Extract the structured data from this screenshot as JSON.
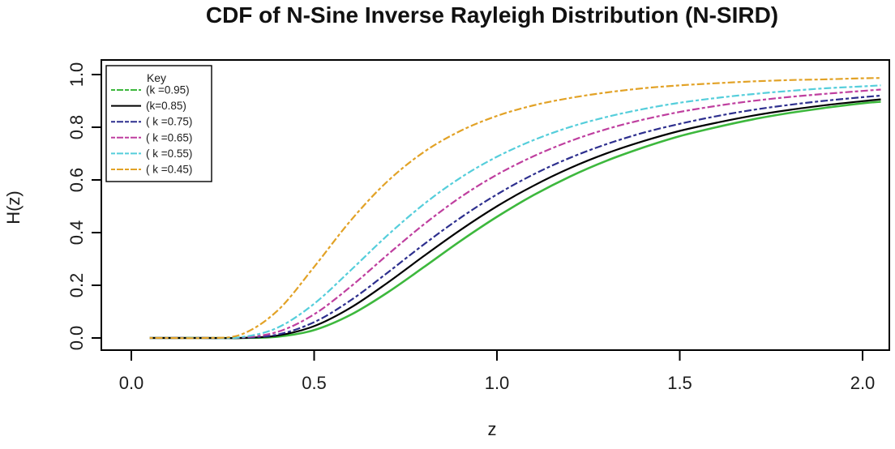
{
  "chart_data": {
    "type": "line",
    "title": "CDF of N-Sine Inverse Rayleigh Distribution (N-SIRD)",
    "xlabel": "z",
    "ylabel": "H(z)",
    "xlim": [
      0,
      2
    ],
    "ylim": [
      0,
      1
    ],
    "grid": false,
    "x_ticks": [
      0.0,
      0.5,
      1.0,
      1.5,
      2.0
    ],
    "x_tick_labels": [
      "0.0",
      "0.5",
      "1.0",
      "1.5",
      "2.0"
    ],
    "y_ticks": [
      0.0,
      0.2,
      0.4,
      0.6,
      0.8,
      1.0
    ],
    "y_tick_labels": [
      "0.0",
      "0.2",
      "0.4",
      "0.6",
      "0.8",
      "1.0"
    ],
    "legend": {
      "title": "Key",
      "position": "top-left"
    },
    "x": [
      0.05,
      0.1,
      0.2,
      0.3,
      0.4,
      0.5,
      0.6,
      0.7,
      0.8,
      0.9,
      1.0,
      1.1,
      1.2,
      1.3,
      1.4,
      1.5,
      1.6,
      1.7,
      1.8,
      1.9,
      2.0,
      2.05
    ],
    "series": [
      {
        "name": "k-0.95",
        "label": "(k =0.95)",
        "color": "#3db83d",
        "line_style": "solid",
        "legend_style": "twodash",
        "width": 2.6,
        "values": [
          0,
          0,
          0,
          0,
          0.005,
          0.03,
          0.088,
          0.172,
          0.269,
          0.368,
          0.46,
          0.542,
          0.613,
          0.673,
          0.723,
          0.766,
          0.8,
          0.83,
          0.854,
          0.874,
          0.891,
          0.897
        ]
      },
      {
        "name": "k-0.85",
        "label": "(k=0.85)",
        "color": "#000000",
        "line_style": "solid",
        "legend_style": "solid",
        "width": 2.2,
        "values": [
          0,
          0,
          0,
          0,
          0.009,
          0.045,
          0.115,
          0.209,
          0.311,
          0.41,
          0.5,
          0.578,
          0.645,
          0.701,
          0.747,
          0.786,
          0.817,
          0.844,
          0.866,
          0.884,
          0.899,
          0.906
        ]
      },
      {
        "name": "k-0.75",
        "label": "( k =0.75)",
        "color": "#2d2f8e",
        "line_style": "twodash",
        "legend_style": "twodash",
        "width": 2.2,
        "values": [
          0,
          0,
          0,
          0.001,
          0.013,
          0.06,
          0.143,
          0.247,
          0.355,
          0.456,
          0.545,
          0.621,
          0.684,
          0.736,
          0.779,
          0.813,
          0.842,
          0.866,
          0.885,
          0.901,
          0.914,
          0.92
        ]
      },
      {
        "name": "k-0.65",
        "label": "( k =0.65)",
        "color": "#bf3f9f",
        "line_style": "twodash",
        "legend_style": "twodash",
        "width": 2.2,
        "values": [
          0,
          0,
          0,
          0.002,
          0.023,
          0.09,
          0.195,
          0.315,
          0.431,
          0.534,
          0.62,
          0.69,
          0.747,
          0.793,
          0.829,
          0.858,
          0.881,
          0.9,
          0.915,
          0.927,
          0.938,
          0.943
        ]
      },
      {
        "name": "k-0.55",
        "label": "( k =0.55)",
        "color": "#55cedb",
        "line_style": "twodash",
        "legend_style": "twodash",
        "width": 2.2,
        "values": [
          0,
          0,
          0,
          0.003,
          0.039,
          0.13,
          0.257,
          0.389,
          0.508,
          0.608,
          0.688,
          0.751,
          0.801,
          0.839,
          0.869,
          0.893,
          0.911,
          0.926,
          0.938,
          0.948,
          0.955,
          0.959
        ]
      },
      {
        "name": "k-0.45",
        "label": "( k =0.45)",
        "color": "#e2a226",
        "line_style": "twodash",
        "legend_style": "twodash",
        "width": 2.2,
        "values": [
          0,
          0,
          0,
          0.013,
          0.104,
          0.27,
          0.446,
          0.594,
          0.706,
          0.786,
          0.843,
          0.883,
          0.911,
          0.932,
          0.948,
          0.959,
          0.967,
          0.974,
          0.979,
          0.982,
          0.986,
          0.987
        ]
      }
    ]
  }
}
